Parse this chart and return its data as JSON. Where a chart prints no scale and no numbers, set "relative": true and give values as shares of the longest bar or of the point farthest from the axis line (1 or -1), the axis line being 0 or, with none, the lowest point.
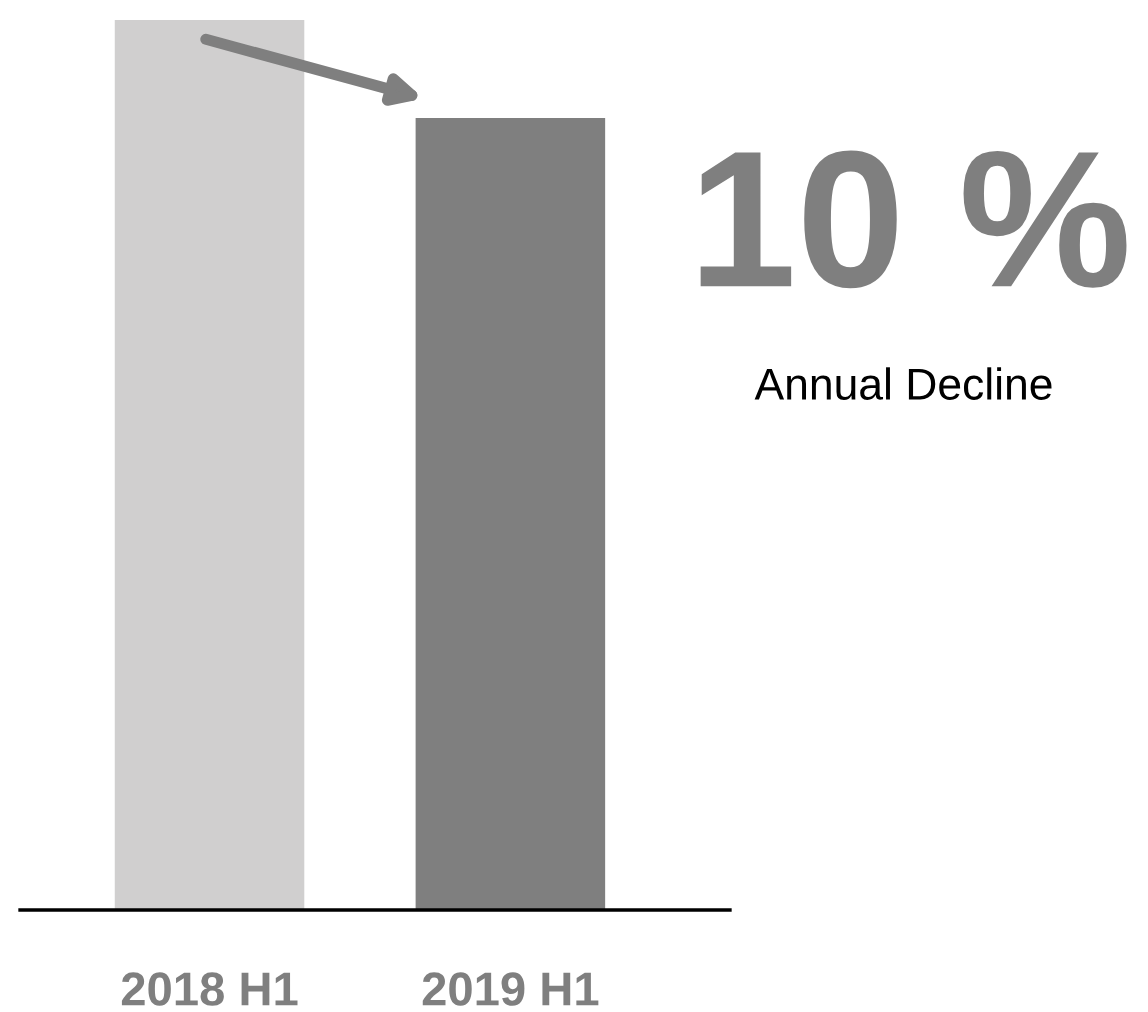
{
  "chart_data": {
    "type": "bar",
    "relative": true,
    "categories": [
      "2018 H1",
      "2019 H1"
    ],
    "values": [
      1,
      0.89
    ],
    "colors": [
      "#d0cfcf",
      "#7f7f7f"
    ],
    "annotations": [
      "10 %",
      "Annual Decline"
    ],
    "grid": false,
    "legend": false
  }
}
